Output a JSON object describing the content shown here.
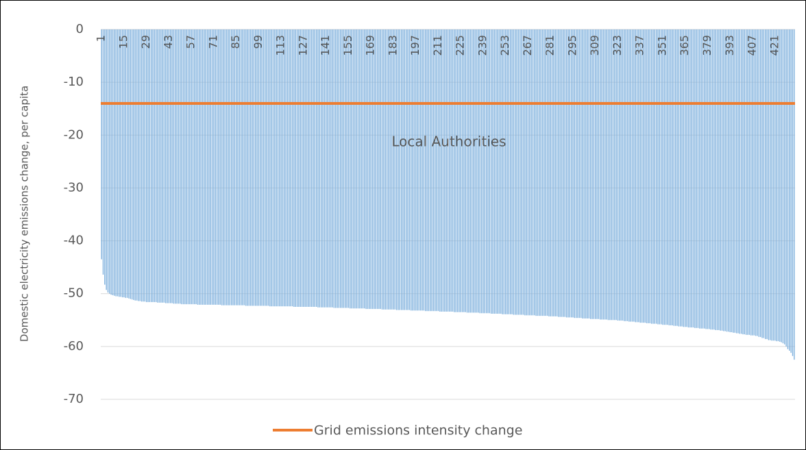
{
  "chart_data": {
    "type": "bar",
    "y_label": "Domestic electricity emissions change, per capita",
    "x_label": "Local Authorities",
    "color": "#7eb0dd",
    "ylim": [
      -70,
      0
    ],
    "yticks": [
      0,
      -10,
      -20,
      -30,
      -40,
      -50,
      -60,
      -70
    ],
    "grid": true,
    "reference_line": {
      "name": "Grid emissions intensity change",
      "value": -14,
      "color": "#ed7d31"
    },
    "legend": "bottom",
    "categories": [
      1,
      null,
      null,
      null,
      null,
      null,
      null,
      null,
      null,
      null,
      null,
      null,
      null,
      null,
      15,
      null,
      null,
      null,
      null,
      null,
      null,
      null,
      null,
      null,
      null,
      null,
      null,
      null,
      29,
      null,
      null,
      null,
      null,
      null,
      null,
      null,
      null,
      null,
      null,
      null,
      null,
      null,
      43,
      null,
      null,
      null,
      null,
      null,
      null,
      null,
      null,
      null,
      null,
      null,
      null,
      null,
      57,
      null,
      null,
      null,
      null,
      null,
      null,
      null,
      null,
      null,
      null,
      null,
      null,
      null,
      71,
      null,
      null,
      null,
      null,
      null,
      null,
      null,
      null,
      null,
      null,
      null,
      null,
      null,
      85,
      null,
      null,
      null,
      null,
      null,
      null,
      null,
      null,
      null,
      null,
      null,
      null,
      null,
      99,
      null,
      null,
      null,
      null,
      null,
      null,
      null,
      null,
      null,
      null,
      null,
      null,
      null,
      113,
      null,
      null,
      null,
      null,
      null,
      null,
      null,
      null,
      null,
      null,
      null,
      null,
      null,
      127,
      null,
      null,
      null,
      null,
      null,
      null,
      null,
      null,
      null,
      null,
      null,
      null,
      null,
      141,
      null,
      null,
      null,
      null,
      null,
      null,
      null,
      null,
      null,
      null,
      null,
      null,
      null,
      155,
      null,
      null,
      null,
      null,
      null,
      null,
      null,
      null,
      null,
      null,
      null,
      null,
      null,
      169,
      null,
      null,
      null,
      null,
      null,
      null,
      null,
      null,
      null,
      null,
      null,
      null,
      null,
      183,
      null,
      null,
      null,
      null,
      null,
      null,
      null,
      null,
      null,
      null,
      null,
      null,
      null,
      197,
      null,
      null,
      null,
      null,
      null,
      null,
      null,
      null,
      null,
      null,
      null,
      null,
      null,
      211,
      null,
      null,
      null,
      null,
      null,
      null,
      null,
      null,
      null,
      null,
      null,
      null,
      null,
      225,
      null,
      null,
      null,
      null,
      null,
      null,
      null,
      null,
      null,
      null,
      null,
      null,
      null,
      239,
      null,
      null,
      null,
      null,
      null,
      null,
      null,
      null,
      null,
      null,
      null,
      null,
      null,
      253,
      null,
      null,
      null,
      null,
      null,
      null,
      null,
      null,
      null,
      null,
      null,
      null,
      null,
      267,
      null,
      null,
      null,
      null,
      null,
      null,
      null,
      null,
      null,
      null,
      null,
      null,
      null,
      281,
      null,
      null,
      null,
      null,
      null,
      null,
      null,
      null,
      null,
      null,
      null,
      null,
      null,
      295,
      null,
      null,
      null,
      null,
      null,
      null,
      null,
      null,
      null,
      null,
      null,
      null,
      null,
      309,
      null,
      null,
      null,
      null,
      null,
      null,
      null,
      null,
      null,
      null,
      null,
      null,
      null,
      323,
      null,
      null,
      null,
      null,
      null,
      null,
      null,
      null,
      null,
      null,
      null,
      null,
      null,
      337,
      null,
      null,
      null,
      null,
      null,
      null,
      null,
      null,
      null,
      null,
      null,
      null,
      null,
      351,
      null,
      null,
      null,
      null,
      null,
      null,
      null,
      null,
      null,
      null,
      null,
      null,
      null,
      365,
      null,
      null,
      null,
      null,
      null,
      null,
      null,
      null,
      null,
      null,
      null,
      null,
      null,
      379,
      null,
      null,
      null,
      null,
      null,
      null,
      null,
      null,
      null,
      null,
      null,
      null,
      null,
      393,
      null,
      null,
      null,
      null,
      null,
      null,
      null,
      null,
      null,
      null,
      null,
      null,
      null,
      407,
      null,
      null,
      null,
      null,
      null,
      null,
      null,
      null,
      null,
      null,
      null,
      null,
      null,
      421,
      null,
      null,
      null,
      null,
      null,
      null,
      null,
      null,
      null,
      null,
      null,
      null
    ],
    "values": [
      -43.5,
      -46.4,
      -48.3,
      -49.3,
      -49.8,
      -50.0,
      -50.2,
      -50.3,
      -50.4,
      -50.5,
      -50.5,
      -50.6,
      -50.6,
      -50.7,
      -50.7,
      -50.8,
      -50.8,
      -50.9,
      -51.0,
      -51.1,
      -51.2,
      -51.3,
      -51.3,
      -51.4,
      -51.4,
      -51.5,
      -51.5,
      -51.5,
      -51.6,
      -51.6,
      -51.6,
      -51.6,
      -51.6,
      -51.6,
      -51.6,
      -51.7,
      -51.7,
      -51.7,
      -51.7,
      -51.7,
      -51.8,
      -51.8,
      -51.8,
      -51.8,
      -51.8,
      -51.9,
      -51.9,
      -51.9,
      -51.9,
      -51.9,
      -52.0,
      -52.0,
      -52.0,
      -52.0,
      -52.0,
      -52.0,
      -52.0,
      -52.0,
      -52.0,
      -52.0,
      -52.1,
      -52.1,
      -52.1,
      -52.1,
      -52.1,
      -52.1,
      -52.1,
      -52.1,
      -52.1,
      -52.1,
      -52.1,
      -52.1,
      -52.1,
      -52.1,
      -52.1,
      -52.2,
      -52.2,
      -52.2,
      -52.2,
      -52.2,
      -52.2,
      -52.2,
      -52.2,
      -52.2,
      -52.2,
      -52.2,
      -52.2,
      -52.2,
      -52.2,
      -52.2,
      -52.3,
      -52.3,
      -52.3,
      -52.3,
      -52.3,
      -52.3,
      -52.3,
      -52.3,
      -52.3,
      -52.3,
      -52.3,
      -52.3,
      -52.3,
      -52.3,
      -52.3,
      -52.4,
      -52.4,
      -52.4,
      -52.4,
      -52.4,
      -52.4,
      -52.4,
      -52.4,
      -52.4,
      -52.4,
      -52.4,
      -52.4,
      -52.4,
      -52.4,
      -52.4,
      -52.5,
      -52.5,
      -52.5,
      -52.5,
      -52.5,
      -52.5,
      -52.5,
      -52.5,
      -52.5,
      -52.5,
      -52.5,
      -52.5,
      -52.5,
      -52.5,
      -52.5,
      -52.6,
      -52.6,
      -52.6,
      -52.6,
      -52.6,
      -52.6,
      -52.6,
      -52.6,
      -52.6,
      -52.6,
      -52.7,
      -52.7,
      -52.7,
      -52.7,
      -52.7,
      -52.7,
      -52.7,
      -52.7,
      -52.7,
      -52.7,
      -52.8,
      -52.8,
      -52.8,
      -52.8,
      -52.8,
      -52.8,
      -52.8,
      -52.8,
      -52.8,
      -52.8,
      -52.9,
      -52.9,
      -52.9,
      -52.9,
      -52.9,
      -52.9,
      -52.9,
      -52.9,
      -52.9,
      -52.9,
      -53.0,
      -53.0,
      -53.0,
      -53.0,
      -53.0,
      -53.0,
      -53.0,
      -53.0,
      -53.0,
      -53.1,
      -53.1,
      -53.1,
      -53.1,
      -53.1,
      -53.1,
      -53.1,
      -53.1,
      -53.1,
      -53.2,
      -53.2,
      -53.2,
      -53.2,
      -53.2,
      -53.2,
      -53.2,
      -53.2,
      -53.2,
      -53.3,
      -53.3,
      -53.3,
      -53.3,
      -53.3,
      -53.3,
      -53.3,
      -53.3,
      -53.3,
      -53.4,
      -53.4,
      -53.4,
      -53.4,
      -53.4,
      -53.4,
      -53.4,
      -53.4,
      -53.4,
      -53.5,
      -53.5,
      -53.5,
      -53.5,
      -53.5,
      -53.5,
      -53.5,
      -53.5,
      -53.6,
      -53.6,
      -53.6,
      -53.6,
      -53.6,
      -53.6,
      -53.6,
      -53.6,
      -53.7,
      -53.7,
      -53.7,
      -53.7,
      -53.7,
      -53.7,
      -53.7,
      -53.8,
      -53.8,
      -53.8,
      -53.8,
      -53.8,
      -53.8,
      -53.8,
      -53.9,
      -53.9,
      -53.9,
      -53.9,
      -53.9,
      -53.9,
      -53.9,
      -54.0,
      -54.0,
      -54.0,
      -54.0,
      -54.0,
      -54.0,
      -54.0,
      -54.1,
      -54.1,
      -54.1,
      -54.1,
      -54.1,
      -54.1,
      -54.1,
      -54.2,
      -54.2,
      -54.2,
      -54.2,
      -54.2,
      -54.2,
      -54.2,
      -54.2,
      -54.3,
      -54.3,
      -54.3,
      -54.3,
      -54.3,
      -54.3,
      -54.4,
      -54.4,
      -54.4,
      -54.4,
      -54.4,
      -54.5,
      -54.5,
      -54.5,
      -54.5,
      -54.5,
      -54.6,
      -54.6,
      -54.6,
      -54.6,
      -54.6,
      -54.7,
      -54.7,
      -54.7,
      -54.7,
      -54.7,
      -54.8,
      -54.8,
      -54.8,
      -54.8,
      -54.8,
      -54.8,
      -54.9,
      -54.9,
      -54.9,
      -54.9,
      -54.9,
      -55.0,
      -55.0,
      -55.0,
      -55.0,
      -55.0,
      -55.0,
      -55.1,
      -55.1,
      -55.1,
      -55.1,
      -55.2,
      -55.2,
      -55.2,
      -55.3,
      -55.3,
      -55.3,
      -55.3,
      -55.4,
      -55.4,
      -55.4,
      -55.5,
      -55.5,
      -55.5,
      -55.5,
      -55.6,
      -55.6,
      -55.6,
      -55.7,
      -55.7,
      -55.7,
      -55.7,
      -55.8,
      -55.8,
      -55.8,
      -55.9,
      -55.9,
      -55.9,
      -55.9,
      -56.0,
      -56.0,
      -56.0,
      -56.1,
      -56.1,
      -56.1,
      -56.2,
      -56.2,
      -56.2,
      -56.3,
      -56.3,
      -56.3,
      -56.4,
      -56.4,
      -56.4,
      -56.4,
      -56.5,
      -56.5,
      -56.5,
      -56.6,
      -56.6,
      -56.6,
      -56.6,
      -56.7,
      -56.7,
      -56.7,
      -56.8,
      -56.8,
      -56.8,
      -56.9,
      -56.9,
      -56.9,
      -57.0,
      -57.0,
      -57.1,
      -57.1,
      -57.2,
      -57.2,
      -57.3,
      -57.3,
      -57.4,
      -57.4,
      -57.5,
      -57.5,
      -57.6,
      -57.6,
      -57.7,
      -57.7,
      -57.8,
      -57.8,
      -57.8,
      -57.9,
      -57.9,
      -57.9,
      -58.0,
      -58.0,
      -58.2,
      -58.2,
      -58.4,
      -58.4,
      -58.6,
      -58.6,
      -58.8,
      -58.8,
      -58.9,
      -58.9,
      -58.9,
      -59.0,
      -59.0,
      -59.1,
      -59.2,
      -59.4,
      -59.6,
      -60.0,
      -60.5,
      -60.8,
      -61.2,
      -61.8,
      -62.5
    ]
  }
}
